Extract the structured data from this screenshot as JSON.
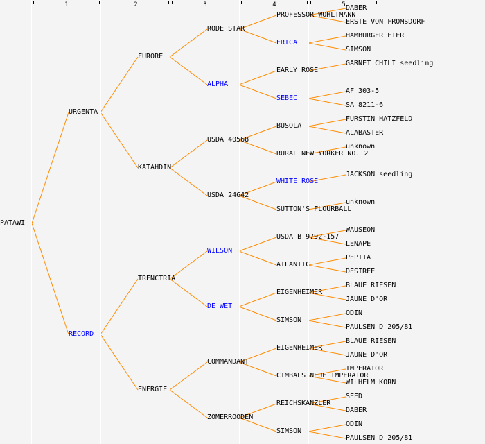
{
  "colors": {
    "line": "#ff8c00",
    "text": "#000000",
    "highlight": "#0000ff",
    "background": "#f4f4f4"
  },
  "header": {
    "generations": [
      "1",
      "2",
      "3",
      "4",
      "5"
    ]
  },
  "generations": [
    [
      {
        "name": "PATAWI"
      }
    ],
    [
      {
        "name": "URGENTA"
      },
      {
        "name": "RECORD",
        "highlight": true
      }
    ],
    [
      {
        "name": "FURORE"
      },
      {
        "name": "KATAHDIN"
      },
      {
        "name": "TRENCTRIA"
      },
      {
        "name": "ENERGIE"
      }
    ],
    [
      {
        "name": "RODE STAR"
      },
      {
        "name": "ALPHA",
        "highlight": true
      },
      {
        "name": "USDA 40568"
      },
      {
        "name": "USDA 24642"
      },
      {
        "name": "WILSON",
        "highlight": true
      },
      {
        "name": "DE WET",
        "highlight": true
      },
      {
        "name": "COMMANDANT"
      },
      {
        "name": "ZOMERROODEN"
      }
    ],
    [
      {
        "name": "PROFESSOR WOHLTMANN"
      },
      {
        "name": "ERICA",
        "highlight": true
      },
      {
        "name": "EARLY ROSE"
      },
      {
        "name": "SEBEC",
        "highlight": true
      },
      {
        "name": "BUSOLA"
      },
      {
        "name": "RURAL NEW YORKER NO. 2"
      },
      {
        "name": "WHITE ROSE",
        "highlight": true
      },
      {
        "name": "SUTTON'S FLOURBALL"
      },
      {
        "name": "USDA B 9792-157"
      },
      {
        "name": "ATLANTIC"
      },
      {
        "name": "EIGENHEIMER"
      },
      {
        "name": "SIMSON"
      },
      {
        "name": "EIGENHEIMER"
      },
      {
        "name": "CIMBALS NEUE IMPERATOR"
      },
      {
        "name": "REICHSKANZLER"
      },
      {
        "name": "SIMSON"
      }
    ],
    [
      {
        "name": "DABER"
      },
      {
        "name": "ERSTE VON FROMSDORF"
      },
      {
        "name": "HAMBURGER EIER"
      },
      {
        "name": "SIMSON"
      },
      {
        "name": "GARNET CHILI seedling"
      },
      null,
      {
        "name": "AF 303-5"
      },
      {
        "name": "SA 8211-6"
      },
      {
        "name": "FURSTIN HATZFELD"
      },
      {
        "name": "ALABASTER"
      },
      {
        "name": "unknown"
      },
      null,
      {
        "name": "JACKSON seedling"
      },
      null,
      {
        "name": "unknown"
      },
      null,
      {
        "name": "WAUSEON"
      },
      {
        "name": "LENAPE"
      },
      {
        "name": "PEPITA"
      },
      {
        "name": "DESIREE"
      },
      {
        "name": "BLAUE RIESEN"
      },
      {
        "name": "JAUNE D'OR"
      },
      {
        "name": "ODIN"
      },
      {
        "name": "PAULSEN D 205/81"
      },
      {
        "name": "BLAUE RIESEN"
      },
      {
        "name": "JAUNE D'OR"
      },
      {
        "name": "IMPERATOR"
      },
      {
        "name": "WILHELM KORN"
      },
      {
        "name": "SEED"
      },
      {
        "name": "DABER"
      },
      {
        "name": "ODIN"
      },
      {
        "name": "PAULSEN D 205/81"
      }
    ]
  ]
}
